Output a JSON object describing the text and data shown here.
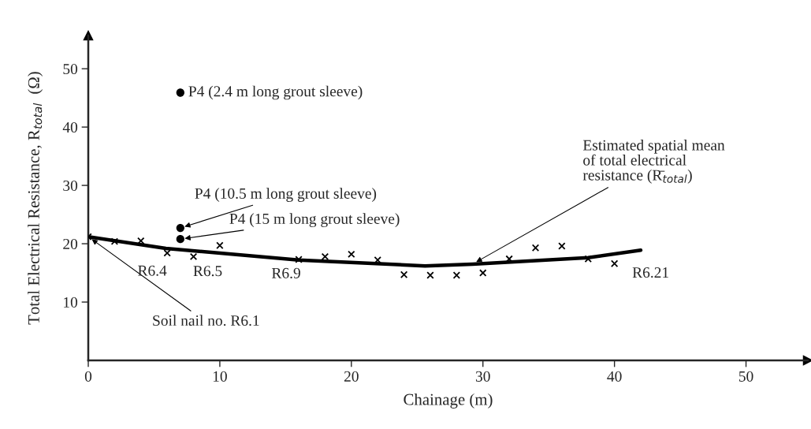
{
  "chart_data": {
    "type": "scatter",
    "xlabel": "Chainage (m)",
    "ylabel": "Total Electrical Resistance, R$_{total}$  (Ω)",
    "xlim": [
      0,
      54.7
    ],
    "ylim": [
      0,
      55.7
    ],
    "xticks": [
      0,
      10,
      20,
      30,
      40,
      50
    ],
    "yticks": [
      10,
      20,
      30,
      40,
      50
    ],
    "grid": false,
    "legend": false,
    "series": [
      {
        "type": "scatter",
        "marker": "cross",
        "color": "#000000",
        "x": [
          0,
          2,
          4,
          6,
          8,
          10,
          16,
          18,
          20,
          22,
          24,
          26,
          28,
          30,
          32,
          34,
          36,
          38,
          40
        ],
        "values": [
          21.2,
          20.4,
          20.5,
          18.4,
          17.8,
          19.7,
          17.3,
          17.8,
          18.2,
          17.2,
          14.7,
          14.6,
          14.6,
          15.0,
          17.4,
          19.3,
          19.6,
          17.4,
          16.6
        ]
      },
      {
        "type": "scatter",
        "marker": "circle",
        "color": "#000000",
        "x": [
          7,
          7,
          7
        ],
        "values": [
          45.9,
          22.7,
          20.8
        ]
      },
      {
        "type": "line",
        "marker": "none",
        "line_style": "solid",
        "color": "#000000",
        "x": [
          0,
          5.9,
          16,
          25.6,
          29.2,
          38,
          42
        ],
        "values": [
          21.2,
          19.2,
          17.2,
          16.2,
          16.5,
          17.6,
          18.9
        ]
      }
    ],
    "annotations": [
      {
        "text": "P4 (2.4 m long grout sleeve)",
        "x": 7,
        "y": 45.9
      },
      {
        "text": "P4 (10.5 m long grout sleeve)",
        "x": 7,
        "y": 22.7
      },
      {
        "text": "P4 (15 m long grout sleeve)",
        "x": 7,
        "y": 20.8
      },
      {
        "text": "Soil nail no. R6.1",
        "x": 0,
        "y": 21.2
      },
      {
        "text": "R6.4",
        "x": 6,
        "y": 18.4
      },
      {
        "text": "R6.5",
        "x": 8,
        "y": 17.8
      },
      {
        "text": "R6.9",
        "x": 16,
        "y": 17.3
      },
      {
        "text": "R6.21",
        "x": 40,
        "y": 16.6
      },
      {
        "text": "Estimated spatial mean\nof total electrical\nresistance (R̄$_{total}$)",
        "x": 29.2,
        "y": 16.5
      }
    ]
  }
}
